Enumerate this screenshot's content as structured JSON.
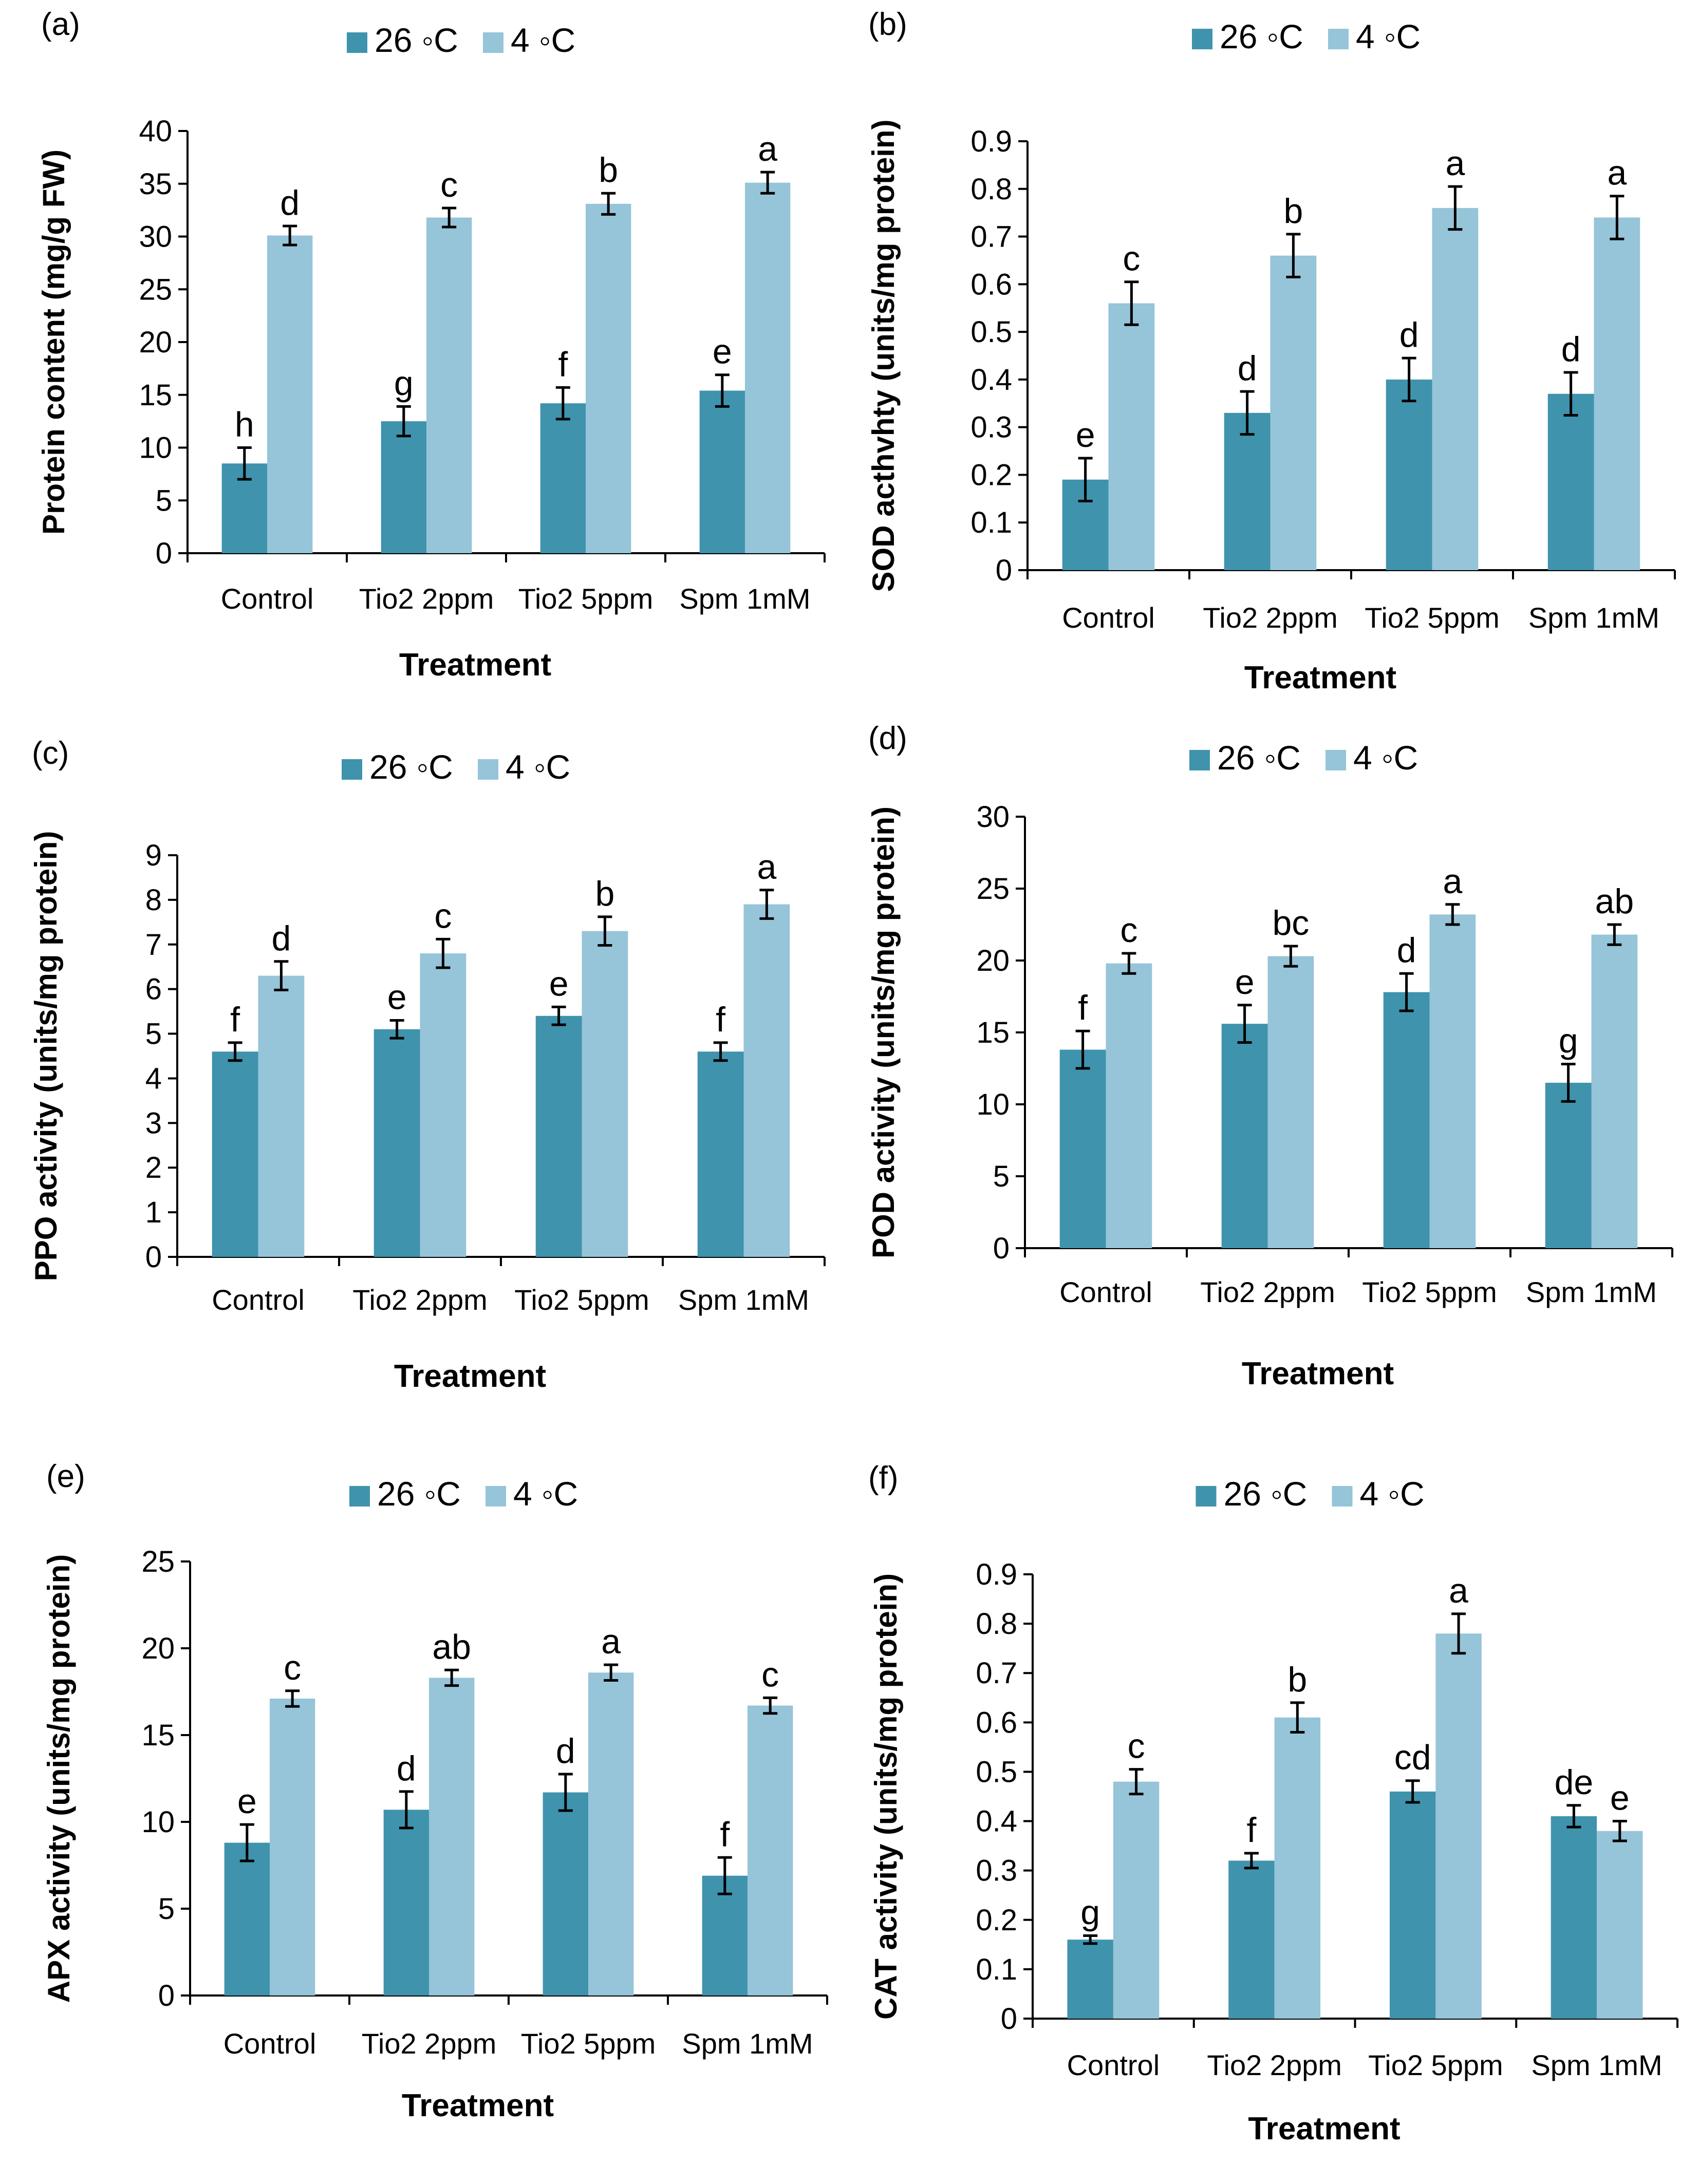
{
  "colors": {
    "warm": "#3f93ad",
    "cold": "#96c4d8",
    "axis": "#000000",
    "errorbar": "#000000"
  },
  "legend": {
    "warm": "26 ◦C",
    "cold": "4 ◦C"
  },
  "chart_data": [
    {
      "type": "bar",
      "panel": "(a)",
      "categories": [
        "Control",
        "Tio2 2ppm",
        "Tio2 5ppm",
        "Spm 1mM"
      ],
      "xlabel": "Treatment",
      "ylabel": "Protein content (mg/g FW)",
      "ylim": [
        0,
        40
      ],
      "yticks": [
        "0",
        "5",
        "10",
        "15",
        "20",
        "25",
        "30",
        "35",
        "40"
      ],
      "series": [
        {
          "name": "26 ◦C",
          "values": [
            8.5,
            12.5,
            14.2,
            15.4
          ],
          "errors": [
            1.5,
            1.4,
            1.5,
            1.5
          ],
          "letters": [
            "h",
            "g",
            "f",
            "e"
          ]
        },
        {
          "name": "4 ◦C",
          "values": [
            30.1,
            31.8,
            33.1,
            35.1
          ],
          "errors": [
            0.9,
            0.9,
            1.0,
            1.0
          ],
          "letters": [
            "d",
            "c",
            "b",
            "a"
          ]
        }
      ]
    },
    {
      "type": "bar",
      "panel": "(b)",
      "categories": [
        "Control",
        "Tio2 2ppm",
        "Tio2 5ppm",
        "Spm 1mM"
      ],
      "xlabel": "Treatment",
      "ylabel": "SOD acthvhty (units/mg protein)",
      "ylim": [
        0,
        0.9
      ],
      "yticks": [
        "0",
        "0.1",
        "0.2",
        "0.3",
        "0.4",
        "0.5",
        "0.6",
        "0.7",
        "0.8",
        "0.9"
      ],
      "series": [
        {
          "name": "26 ◦C",
          "values": [
            0.19,
            0.33,
            0.4,
            0.37
          ],
          "errors": [
            0.045,
            0.045,
            0.045,
            0.045
          ],
          "letters": [
            "e",
            "d",
            "d",
            "d"
          ]
        },
        {
          "name": "4 ◦C",
          "values": [
            0.56,
            0.66,
            0.76,
            0.74
          ],
          "errors": [
            0.045,
            0.045,
            0.045,
            0.045
          ],
          "letters": [
            "c",
            "b",
            "a",
            "a"
          ]
        }
      ]
    },
    {
      "type": "bar",
      "panel": "(c)",
      "categories": [
        "Control",
        "Tio2 2ppm",
        "Tio2 5ppm",
        "Spm 1mM"
      ],
      "xlabel": "Treatment",
      "ylabel": "PPO activity (units/mg protein)",
      "ylim": [
        0,
        9
      ],
      "yticks": [
        "0",
        "1",
        "2",
        "3",
        "4",
        "5",
        "6",
        "7",
        "8",
        "9"
      ],
      "series": [
        {
          "name": "26 ◦C",
          "values": [
            4.6,
            5.1,
            5.4,
            4.6
          ],
          "errors": [
            0.2,
            0.2,
            0.2,
            0.2
          ],
          "letters": [
            "f",
            "e",
            "e",
            "f"
          ]
        },
        {
          "name": "4 ◦C",
          "values": [
            6.3,
            6.8,
            7.3,
            7.9
          ],
          "errors": [
            0.32,
            0.32,
            0.32,
            0.32
          ],
          "letters": [
            "d",
            "c",
            "b",
            "a"
          ]
        }
      ]
    },
    {
      "type": "bar",
      "panel": "(d)",
      "categories": [
        "Control",
        "Tio2 2ppm",
        "Tio2 5ppm",
        "Spm 1mM"
      ],
      "xlabel": "Treatment",
      "ylabel": "POD activity (units/mg protein)",
      "ylim": [
        0,
        30
      ],
      "yticks": [
        "0",
        "5",
        "10",
        "15",
        "20",
        "25",
        "30"
      ],
      "series": [
        {
          "name": "26 ◦C",
          "values": [
            13.8,
            15.6,
            17.8,
            11.5
          ],
          "errors": [
            1.3,
            1.3,
            1.3,
            1.3
          ],
          "letters": [
            "f",
            "e",
            "d",
            "g"
          ]
        },
        {
          "name": "4 ◦C",
          "values": [
            19.8,
            20.3,
            23.2,
            21.8
          ],
          "errors": [
            0.7,
            0.7,
            0.7,
            0.7
          ],
          "letters": [
            "c",
            "bc",
            "a",
            "ab"
          ]
        }
      ]
    },
    {
      "type": "bar",
      "panel": "(e)",
      "categories": [
        "Control",
        "Tio2 2ppm",
        "Tio2 5ppm",
        "Spm 1mM"
      ],
      "xlabel": "Treatment",
      "ylabel": "APX activity (units/mg protein)",
      "ylim": [
        0,
        25
      ],
      "yticks": [
        "0",
        "5",
        "10",
        "15",
        "20",
        "25"
      ],
      "series": [
        {
          "name": "26 ◦C",
          "values": [
            8.8,
            10.7,
            11.7,
            6.9
          ],
          "errors": [
            1.05,
            1.05,
            1.05,
            1.05
          ],
          "letters": [
            "e",
            "d",
            "d",
            "f"
          ]
        },
        {
          "name": "4 ◦C",
          "values": [
            17.1,
            18.3,
            18.6,
            16.7
          ],
          "errors": [
            0.45,
            0.45,
            0.45,
            0.45
          ],
          "letters": [
            "c",
            "ab",
            "a",
            "c"
          ]
        }
      ]
    },
    {
      "type": "bar",
      "panel": "(f)",
      "categories": [
        "Control",
        "Tio2 2ppm",
        "Tio2 5ppm",
        "Spm 1mM"
      ],
      "xlabel": "Treatment",
      "ylabel": "CAT activity (units/mg protein)",
      "ylim": [
        0,
        0.9
      ],
      "yticks": [
        "0",
        "0.1",
        "0.2",
        "0.3",
        "0.4",
        "0.5",
        "0.6",
        "0.7",
        "0.8",
        "0.9"
      ],
      "series": [
        {
          "name": "26 ◦C",
          "values": [
            0.16,
            0.32,
            0.46,
            0.41
          ],
          "errors": [
            0.008,
            0.015,
            0.022,
            0.022
          ],
          "letters": [
            "g",
            "f",
            "cd",
            "de"
          ]
        },
        {
          "name": "4 ◦C",
          "values": [
            0.48,
            0.61,
            0.78,
            0.38
          ],
          "errors": [
            0.025,
            0.03,
            0.04,
            0.02
          ],
          "letters": [
            "c",
            "b",
            "a",
            "e"
          ]
        }
      ]
    }
  ]
}
